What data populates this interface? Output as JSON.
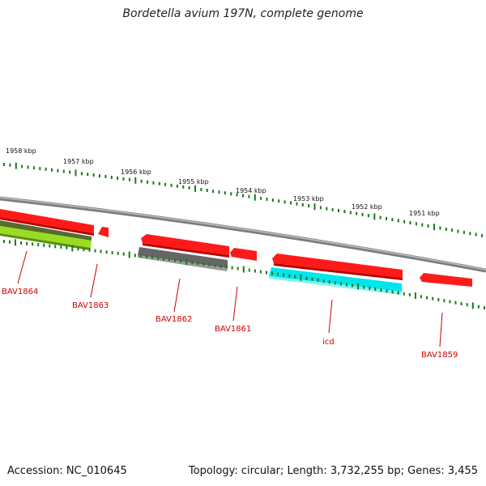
{
  "title": "Bordetella avium 197N, complete genome",
  "footer": {
    "accession": "Accession: NC_010645",
    "topology": "Topology: circular; Length: 3,732,255 bp; Genes: 3,455"
  },
  "scale_labels": [
    "1958 kbp",
    "1957 kbp",
    "1956 kbp",
    "1955 kbp",
    "1954 kbp",
    "1953 kbp",
    "1952 kbp",
    "1951 kbp"
  ],
  "gene_labels": [
    "BAV1864",
    "BAV1863",
    "BAV1862",
    "BAV1861",
    "icd",
    "BAV1859"
  ],
  "colors": {
    "backbone": "#8a8a8a",
    "cds_forward": "#ff1a1a",
    "cds_reverse_gray": "#666666",
    "cds_reverse_green": "#88cc22",
    "cds_reverse_cyan": "#00e5ee",
    "ticks": "#1a7a1a",
    "label_red": "#cc0000"
  }
}
